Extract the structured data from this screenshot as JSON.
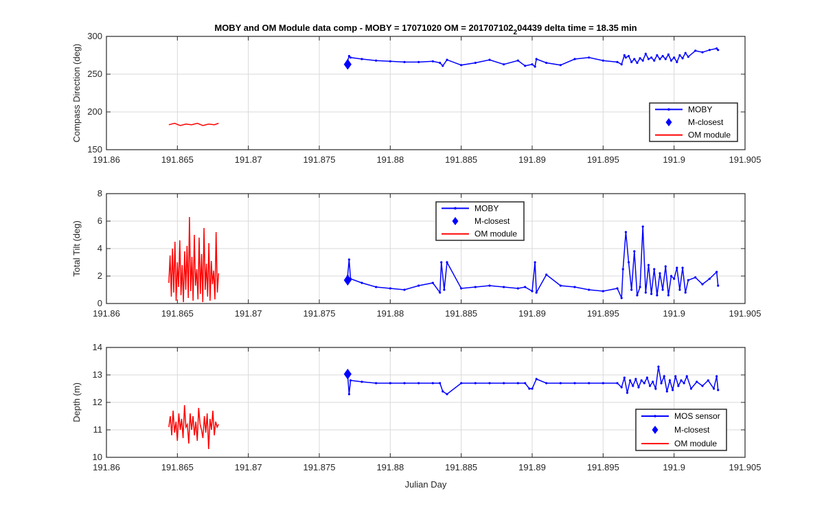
{
  "figure": {
    "title_prefix": "MOBY and OM Module data comp - MOBY = 17071020 OM = 201707102",
    "title_subscript": "2",
    "title_suffix": "04439 delta time = 18.35 min",
    "xlabel": "Julian Day"
  },
  "colors": {
    "moby": "#0000ff",
    "om": "#ff0000",
    "grid": "#d9d9d9",
    "axis": "#262626"
  },
  "chart_data": [
    {
      "type": "line",
      "ylabel": "Compass Direction (deg)",
      "xlim": [
        191.86,
        191.905
      ],
      "ylim": [
        150,
        300
      ],
      "xticks": [
        191.86,
        191.865,
        191.87,
        191.875,
        191.88,
        191.885,
        191.89,
        191.895,
        191.9,
        191.905
      ],
      "xtick_labels": [
        "191.86",
        "191.865",
        "191.87",
        "191.875",
        "191.88",
        "191.885",
        "191.89",
        "191.895",
        "191.9",
        "191.905"
      ],
      "yticks": [
        150,
        200,
        250,
        300
      ],
      "ytick_labels": [
        "150",
        "200",
        "250",
        "300"
      ],
      "grid": true,
      "legend": {
        "position": "bottom-right",
        "entries": [
          "MOBY",
          "M-closest",
          "OM module"
        ]
      },
      "series": [
        {
          "name": "MOBY",
          "style": "line-dots",
          "color": "#0000ff",
          "x": [
            191.877,
            191.8771,
            191.8772,
            191.878,
            191.879,
            191.88,
            191.881,
            191.882,
            191.883,
            191.8835,
            191.8837,
            191.884,
            191.885,
            191.886,
            191.887,
            191.888,
            191.889,
            191.8895,
            191.89,
            191.8902,
            191.8903,
            191.891,
            191.892,
            191.893,
            191.894,
            191.895,
            191.896,
            191.8963,
            191.8965,
            191.8966,
            191.8968,
            191.897,
            191.8972,
            191.8974,
            191.8976,
            191.8978,
            191.898,
            191.8982,
            191.8984,
            191.8986,
            191.8988,
            191.899,
            191.8992,
            191.8994,
            191.8996,
            191.8998,
            191.9,
            191.9002,
            191.9004,
            191.9006,
            191.9008,
            191.901,
            191.9015,
            191.902,
            191.9025,
            191.903,
            191.9031
          ],
          "y": [
            268,
            274,
            272,
            270,
            268,
            267,
            266,
            266,
            267,
            265,
            261,
            269,
            262,
            265,
            269,
            263,
            268,
            261,
            263,
            260,
            270,
            265,
            262,
            270,
            272,
            268,
            266,
            263,
            275,
            272,
            274,
            266,
            270,
            265,
            271,
            268,
            277,
            270,
            272,
            268,
            275,
            270,
            274,
            270,
            276,
            268,
            272,
            266,
            275,
            271,
            278,
            273,
            281,
            279,
            282,
            284,
            282
          ]
        },
        {
          "name": "M-closest",
          "style": "diamond",
          "color": "#0000ff",
          "x": [
            191.877
          ],
          "y": [
            263
          ]
        },
        {
          "name": "OM module",
          "style": "line",
          "color": "#ff0000",
          "x": [
            191.8644,
            191.8648,
            191.8652,
            191.8656,
            191.866,
            191.8664,
            191.8668,
            191.8672,
            191.8676,
            191.8679
          ],
          "y": [
            183,
            185,
            182,
            184,
            183,
            185,
            182,
            184,
            183,
            185
          ]
        }
      ]
    },
    {
      "type": "line",
      "ylabel": "Total Tilt (deg)",
      "xlim": [
        191.86,
        191.905
      ],
      "ylim": [
        0,
        8
      ],
      "xticks": [
        191.86,
        191.865,
        191.87,
        191.875,
        191.88,
        191.885,
        191.89,
        191.895,
        191.9,
        191.905
      ],
      "xtick_labels": [
        "191.86",
        "191.865",
        "191.87",
        "191.875",
        "191.88",
        "191.885",
        "191.89",
        "191.895",
        "191.9",
        "191.905"
      ],
      "yticks": [
        0,
        2,
        4,
        6,
        8
      ],
      "ytick_labels": [
        "0",
        "2",
        "4",
        "6",
        "8"
      ],
      "grid": true,
      "legend": {
        "position": "top-center",
        "entries": [
          "MOBY",
          "M-closest",
          "OM module"
        ]
      },
      "series": [
        {
          "name": "MOBY",
          "style": "line-dots",
          "color": "#0000ff",
          "x": [
            191.877,
            191.8771,
            191.8772,
            191.878,
            191.879,
            191.88,
            191.881,
            191.882,
            191.883,
            191.8835,
            191.8836,
            191.8838,
            191.884,
            191.885,
            191.886,
            191.887,
            191.888,
            191.889,
            191.8895,
            191.89,
            191.8902,
            191.8903,
            191.891,
            191.892,
            191.893,
            191.894,
            191.895,
            191.896,
            191.8963,
            191.8964,
            191.8966,
            191.8968,
            191.897,
            191.8972,
            191.8974,
            191.8976,
            191.8978,
            191.898,
            191.8982,
            191.8984,
            191.8986,
            191.8988,
            191.899,
            191.8992,
            191.8994,
            191.8996,
            191.8998,
            191.9,
            191.9002,
            191.9004,
            191.9006,
            191.9008,
            191.901,
            191.9015,
            191.902,
            191.9025,
            191.903,
            191.9031
          ],
          "y": [
            2.0,
            3.2,
            1.8,
            1.5,
            1.2,
            1.1,
            1.0,
            1.3,
            1.5,
            0.8,
            3.0,
            1.0,
            3.0,
            1.1,
            1.2,
            1.3,
            1.2,
            1.1,
            1.2,
            0.9,
            3.0,
            0.8,
            2.1,
            1.3,
            1.2,
            1.0,
            0.9,
            1.1,
            0.4,
            2.5,
            5.2,
            3.0,
            1.0,
            3.8,
            0.6,
            1.2,
            5.6,
            0.8,
            2.8,
            0.7,
            2.5,
            0.6,
            2.2,
            1.0,
            2.7,
            0.6,
            2.0,
            1.8,
            2.6,
            1.0,
            2.6,
            0.8,
            1.7,
            1.9,
            1.4,
            1.8,
            2.3,
            1.3
          ]
        },
        {
          "name": "M-closest",
          "style": "diamond",
          "color": "#0000ff",
          "x": [
            191.877
          ],
          "y": [
            1.7
          ]
        },
        {
          "name": "OM module",
          "style": "noisy-band",
          "color": "#ff0000",
          "x_range": [
            191.8644,
            191.8679
          ],
          "y": [
            1.5,
            3.5,
            0.5,
            4.0,
            0.8,
            4.5,
            0.2,
            3.0,
            1.2,
            4.6,
            0.6,
            2.8,
            0.1,
            3.8,
            1.0,
            4.2,
            0.4,
            6.3,
            0.9,
            3.4,
            0.2,
            5.0,
            1.3,
            2.5,
            0.3,
            4.8,
            0.7,
            3.6,
            0.1,
            5.5,
            1.0,
            2.9,
            0.5,
            4.4,
            0.2,
            3.1,
            1.4,
            2.4,
            0.3,
            5.2,
            0.8,
            2.2
          ]
        }
      ]
    },
    {
      "type": "line",
      "ylabel": "Depth (m)",
      "xlim": [
        191.86,
        191.905
      ],
      "ylim": [
        10,
        14
      ],
      "xticks": [
        191.86,
        191.865,
        191.87,
        191.875,
        191.88,
        191.885,
        191.89,
        191.895,
        191.9,
        191.905
      ],
      "xtick_labels": [
        "191.86",
        "191.865",
        "191.87",
        "191.875",
        "191.88",
        "191.885",
        "191.89",
        "191.895",
        "191.9",
        "191.905"
      ],
      "yticks": [
        10,
        11,
        12,
        13,
        14
      ],
      "ytick_labels": [
        "10",
        "11",
        "12",
        "13",
        "14"
      ],
      "xlabel": "Julian Day",
      "grid": true,
      "legend": {
        "position": "bottom-right",
        "entries": [
          "MOS sensor",
          "M-closest",
          "OM module"
        ]
      },
      "series": [
        {
          "name": "MOS sensor",
          "style": "line-dots",
          "color": "#0000ff",
          "x": [
            191.877,
            191.8771,
            191.8772,
            191.878,
            191.879,
            191.88,
            191.881,
            191.882,
            191.883,
            191.8835,
            191.8837,
            191.884,
            191.885,
            191.886,
            191.887,
            191.888,
            191.889,
            191.8895,
            191.8898,
            191.89,
            191.8903,
            191.891,
            191.892,
            191.893,
            191.894,
            191.895,
            191.896,
            191.8963,
            191.8965,
            191.8967,
            191.8969,
            191.8971,
            191.8973,
            191.8975,
            191.8977,
            191.8979,
            191.8981,
            191.8983,
            191.8985,
            191.8987,
            191.8989,
            191.8991,
            191.8993,
            191.8995,
            191.8997,
            191.8999,
            191.9001,
            191.9003,
            191.9005,
            191.9007,
            191.9009,
            191.9012,
            191.9016,
            191.902,
            191.9024,
            191.9028,
            191.903,
            191.9031
          ],
          "y": [
            13.0,
            12.3,
            12.8,
            12.75,
            12.7,
            12.7,
            12.7,
            12.7,
            12.7,
            12.7,
            12.4,
            12.3,
            12.7,
            12.7,
            12.7,
            12.7,
            12.7,
            12.7,
            12.5,
            12.5,
            12.85,
            12.7,
            12.7,
            12.7,
            12.7,
            12.7,
            12.7,
            12.55,
            12.9,
            12.35,
            12.8,
            12.6,
            12.85,
            12.55,
            12.8,
            12.7,
            12.9,
            12.6,
            12.75,
            12.5,
            13.3,
            12.7,
            12.95,
            12.4,
            12.8,
            12.45,
            12.95,
            12.6,
            12.8,
            12.7,
            12.95,
            12.5,
            12.75,
            12.6,
            12.8,
            12.5,
            12.95,
            12.45
          ]
        },
        {
          "name": "M-closest",
          "style": "diamond",
          "color": "#0000ff",
          "x": [
            191.877
          ],
          "y": [
            13.03
          ]
        },
        {
          "name": "OM module",
          "style": "noisy-band",
          "color": "#ff0000",
          "x_range": [
            191.8644,
            191.8679
          ],
          "y": [
            11.1,
            11.5,
            10.8,
            11.7,
            10.9,
            11.3,
            10.6,
            11.6,
            11.0,
            11.4,
            10.7,
            11.9,
            11.1,
            11.2,
            10.5,
            11.6,
            11.0,
            11.5,
            10.8,
            11.3,
            10.6,
            11.8,
            11.2,
            11.0,
            10.7,
            11.5,
            10.9,
            11.6,
            10.3,
            11.4,
            11.0,
            11.7,
            10.8,
            11.3,
            11.1,
            11.2
          ]
        }
      ]
    }
  ]
}
